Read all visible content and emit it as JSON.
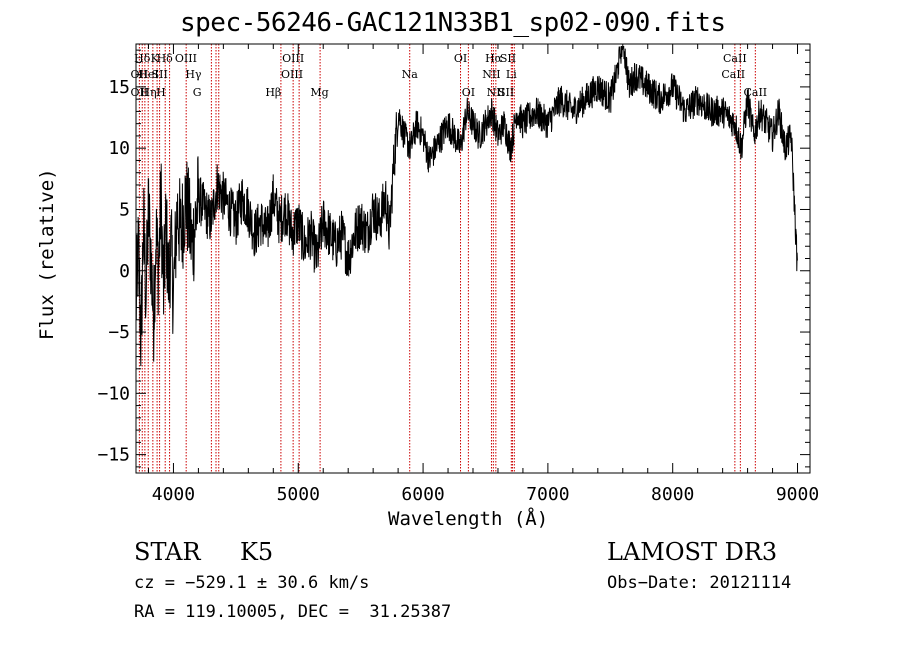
{
  "header": {
    "title": "spec-56246-GAC121N33B1_sp02-090.fits"
  },
  "footer": {
    "object_class": "STAR",
    "subclass": "K5",
    "survey": "LAMOST DR3",
    "cz": "cz = −529.1 ± 30.6 km/s",
    "obs_date": "Obs−Date: 20121114",
    "radec": "RA = 119.10005, DEC =  31.25387"
  },
  "colors": {
    "spectrum": "#000000",
    "lines": "#cc0000",
    "background": "#ffffff"
  },
  "chart_data": {
    "type": "line",
    "title": "spec-56246-GAC121N33B1_sp02-090.fits",
    "xlabel": "Wavelength (Å)",
    "ylabel": "Flux (relative)",
    "xlim": [
      3700,
      9100
    ],
    "ylim": [
      -16.5,
      18.5
    ],
    "xticks": [
      4000,
      5000,
      6000,
      7000,
      8000,
      9000
    ],
    "yticks": [
      -15,
      -10,
      -5,
      0,
      5,
      10,
      15
    ],
    "ytick_labels": [
      "−15",
      "−10",
      "−5",
      "0",
      "5",
      "10",
      "15"
    ],
    "xtick_labels": [
      "4000",
      "5000",
      "6000",
      "7000",
      "8000",
      "9000"
    ],
    "series": [
      {
        "name": "flux",
        "x": [
          3700,
          3720,
          3740,
          3760,
          3780,
          3800,
          3820,
          3840,
          3860,
          3880,
          3900,
          3920,
          3940,
          3960,
          3980,
          4000,
          4030,
          4060,
          4100,
          4150,
          4200,
          4250,
          4300,
          4350,
          4400,
          4450,
          4500,
          4550,
          4600,
          4650,
          4700,
          4750,
          4800,
          4850,
          4900,
          4950,
          5000,
          5050,
          5100,
          5150,
          5200,
          5250,
          5300,
          5350,
          5400,
          5450,
          5500,
          5550,
          5600,
          5650,
          5700,
          5730,
          5760,
          5800,
          5850,
          5900,
          5950,
          6000,
          6050,
          6100,
          6150,
          6200,
          6250,
          6300,
          6350,
          6400,
          6450,
          6500,
          6550,
          6600,
          6650,
          6700,
          6720,
          6750,
          6800,
          6900,
          7000,
          7100,
          7200,
          7300,
          7400,
          7500,
          7550,
          7600,
          7650,
          7700,
          7800,
          7900,
          8000,
          8100,
          8200,
          8300,
          8400,
          8500,
          8550,
          8600,
          8650,
          8700,
          8750,
          8800,
          8850,
          8900,
          8950,
          9000
        ],
        "y": [
          -3,
          2,
          -6,
          4,
          -2,
          5,
          1,
          -4,
          3,
          0,
          6,
          -2,
          4,
          -1,
          2,
          -2,
          5,
          3,
          6,
          2,
          6,
          5,
          4,
          7,
          6,
          5,
          4,
          6,
          5,
          3,
          4,
          3,
          6,
          4,
          5,
          3,
          4,
          2,
          3,
          1,
          4,
          3,
          2,
          3,
          1,
          3,
          4,
          3,
          5,
          4,
          6,
          3,
          8,
          13,
          11,
          10,
          12,
          11,
          9,
          10,
          11,
          12,
          11,
          10,
          13,
          12,
          11,
          12,
          13,
          11,
          12,
          10,
          11,
          13,
          12,
          13,
          12,
          14,
          13,
          14,
          15,
          14,
          16,
          19,
          15,
          16,
          15,
          14,
          15,
          13,
          14,
          13,
          13,
          12,
          10,
          14,
          11,
          13,
          12,
          11,
          13,
          10,
          11,
          0
        ],
        "noise": 1.3
      }
    ],
    "annotations": [
      {
        "label": "Hδ",
        "x": 3750,
        "row": 1
      },
      {
        "label": "K",
        "x": 3850,
        "row": 1
      },
      {
        "label": "Hδ",
        "x": 3930,
        "row": 1
      },
      {
        "label": "OIII",
        "x": 4100,
        "row": 1
      },
      {
        "label": "OII",
        "x": 3727,
        "row": 2
      },
      {
        "label": "HeI",
        "x": 3800,
        "row": 2
      },
      {
        "label": "SII",
        "x": 3890,
        "row": 2
      },
      {
        "label": "Hγ",
        "x": 4160,
        "row": 2
      },
      {
        "label": "OII",
        "x": 3727,
        "row": 3
      },
      {
        "label": "Hη",
        "x": 3800,
        "row": 3
      },
      {
        "label": "H",
        "x": 3900,
        "row": 3
      },
      {
        "label": "G",
        "x": 4190,
        "row": 3
      },
      {
        "label": "OIII",
        "x": 4959,
        "row": 1
      },
      {
        "label": "OIII",
        "x": 4950,
        "row": 2
      },
      {
        "label": "Hβ",
        "x": 4800,
        "row": 3
      },
      {
        "label": "Mg",
        "x": 5170,
        "row": 3
      },
      {
        "label": "Na",
        "x": 5893,
        "row": 2
      },
      {
        "label": "OI",
        "x": 6300,
        "row": 1
      },
      {
        "label": "OI",
        "x": 6363,
        "row": 3
      },
      {
        "label": "Hα",
        "x": 6565,
        "row": 1
      },
      {
        "label": "SII",
        "x": 6680,
        "row": 1
      },
      {
        "label": "NII",
        "x": 6548,
        "row": 2
      },
      {
        "label": "Li",
        "x": 6707,
        "row": 2
      },
      {
        "label": "NII",
        "x": 6583,
        "row": 3
      },
      {
        "label": "SII",
        "x": 6665,
        "row": 3
      },
      {
        "label": "CaII",
        "x": 8498,
        "row": 1
      },
      {
        "label": "CaII",
        "x": 8485,
        "row": 2
      },
      {
        "label": "CaII",
        "x": 8662,
        "row": 3
      }
    ],
    "line_markers": [
      3727,
      3750,
      3771,
      3798,
      3835,
      3869,
      3889,
      3934,
      3969,
      4102,
      4304,
      4341,
      4363,
      4861,
      4959,
      5007,
      5175,
      5893,
      6300,
      6363,
      6548,
      6563,
      6583,
      6707,
      6716,
      6731,
      8498,
      8542,
      8662
    ]
  }
}
